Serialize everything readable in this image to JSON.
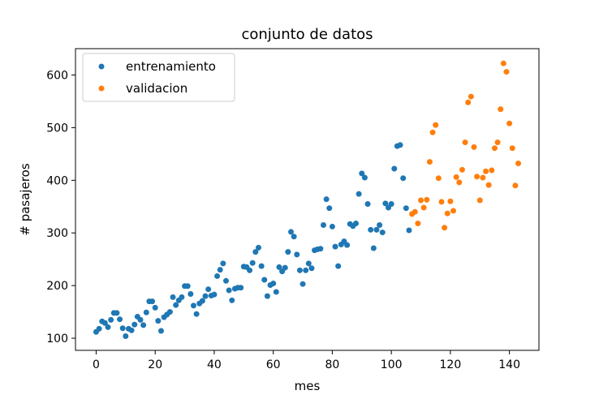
{
  "chart_data": {
    "type": "scatter",
    "title": "conjunto de datos",
    "xlabel": "mes",
    "ylabel": "# pasajeros",
    "xlim": [
      -7,
      150
    ],
    "ylim": [
      77,
      650
    ],
    "xticks": [
      0,
      20,
      40,
      60,
      80,
      100,
      120,
      140
    ],
    "yticks": [
      100,
      200,
      300,
      400,
      500,
      600
    ],
    "grid": false,
    "legend_position": "top-left",
    "series": [
      {
        "name": "entrenamiento",
        "color": "#1f77b4",
        "x": [
          0,
          1,
          2,
          3,
          4,
          5,
          6,
          7,
          8,
          9,
          10,
          11,
          12,
          13,
          14,
          15,
          16,
          17,
          18,
          19,
          20,
          21,
          22,
          23,
          24,
          25,
          26,
          27,
          28,
          29,
          30,
          31,
          32,
          33,
          34,
          35,
          36,
          37,
          38,
          39,
          40,
          41,
          42,
          43,
          44,
          45,
          46,
          47,
          48,
          49,
          50,
          51,
          52,
          53,
          54,
          55,
          56,
          57,
          58,
          59,
          60,
          61,
          62,
          63,
          64,
          65,
          66,
          67,
          68,
          69,
          70,
          71,
          72,
          73,
          74,
          75,
          76,
          77,
          78,
          79,
          80,
          81,
          82,
          83,
          84,
          85,
          86,
          87,
          88,
          89,
          90,
          91,
          92,
          93,
          94,
          95,
          96,
          97,
          98,
          99,
          100,
          101,
          102,
          103,
          104,
          105,
          106
        ],
        "y": [
          112,
          118,
          132,
          129,
          121,
          135,
          148,
          148,
          136,
          119,
          104,
          118,
          115,
          126,
          141,
          135,
          125,
          149,
          170,
          170,
          158,
          133,
          114,
          140,
          145,
          150,
          178,
          163,
          172,
          178,
          199,
          199,
          184,
          162,
          146,
          166,
          171,
          180,
          193,
          181,
          183,
          218,
          230,
          242,
          209,
          191,
          172,
          194,
          196,
          196,
          236,
          235,
          229,
          243,
          264,
          272,
          237,
          211,
          180,
          201,
          204,
          188,
          235,
          227,
          234,
          264,
          302,
          293,
          259,
          229,
          203,
          229,
          242,
          233,
          267,
          269,
          270,
          315,
          364,
          347,
          312,
          274,
          237,
          278,
          284,
          277,
          317,
          313,
          318,
          374,
          413,
          405,
          355,
          306,
          271,
          306,
          315,
          301,
          356,
          348,
          355,
          422,
          465,
          467,
          404,
          347,
          305
        ]
      },
      {
        "name": "validacion",
        "color": "#ff7f0e",
        "x": [
          107,
          108,
          109,
          110,
          111,
          112,
          113,
          114,
          115,
          116,
          117,
          118,
          119,
          120,
          121,
          122,
          123,
          124,
          125,
          126,
          127,
          128,
          129,
          130,
          131,
          132,
          133,
          134,
          135,
          136,
          137,
          138,
          139,
          140,
          141,
          142,
          143
        ],
        "y": [
          336,
          340,
          318,
          362,
          348,
          363,
          435,
          491,
          505,
          404,
          359,
          310,
          337,
          360,
          342,
          406,
          396,
          420,
          472,
          548,
          559,
          463,
          407,
          362,
          405,
          417,
          391,
          419,
          461,
          472,
          535,
          622,
          606,
          508,
          461,
          390,
          432
        ]
      }
    ]
  }
}
